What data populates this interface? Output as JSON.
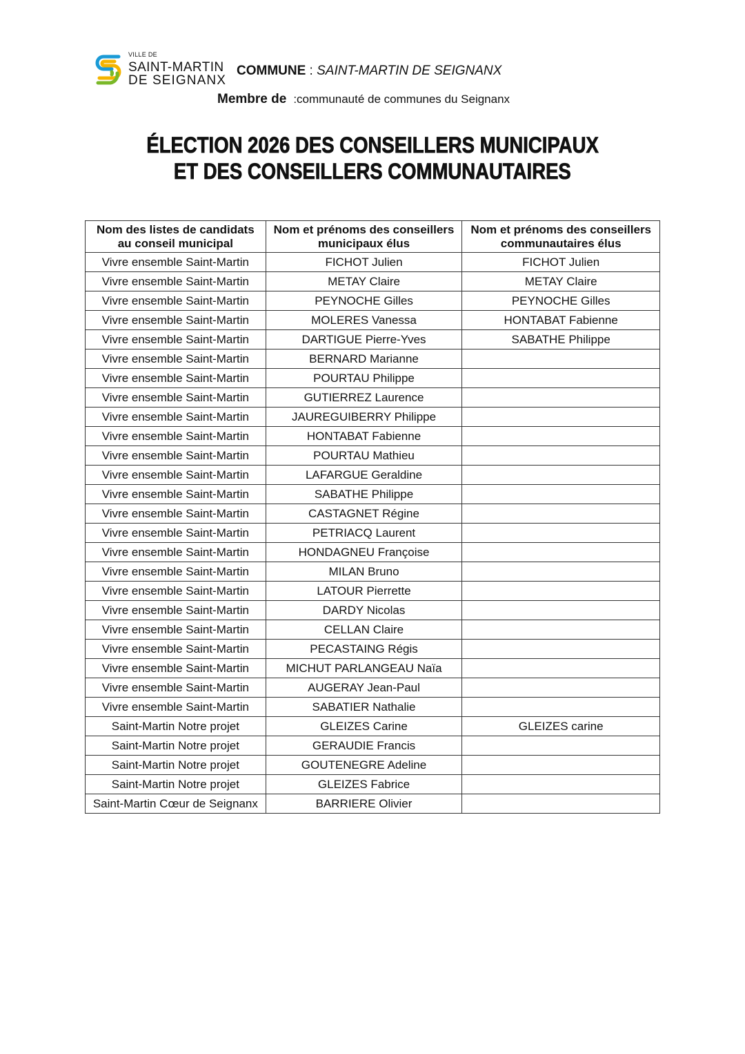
{
  "logo": {
    "small": "VILLE DE",
    "line1": "SAINT-MARTIN",
    "line2": "DE SEIGNANX",
    "colors": [
      "#1a9ad6",
      "#f5b400",
      "#7ab828"
    ]
  },
  "header": {
    "commune_label": "COMMUNE",
    "commune_sep": " : ",
    "commune_value": "SAINT-MARTIN DE SEIGNANX",
    "membre_label": "Membre de",
    "membre_value": ":communauté de communes du Seignanx"
  },
  "title": {
    "line1": "ÉLECTION 2026 DES CONSEILLERS MUNICIPAUX",
    "line2": "ET DES CONSEILLERS COMMUNAUTAIRES"
  },
  "table": {
    "headers": [
      [
        "Nom des listes de candidats",
        "au conseil municipal"
      ],
      [
        "Nom et prénoms des conseillers",
        "municipaux élus"
      ],
      [
        "Nom et prénoms des conseillers",
        "communautaires élus"
      ]
    ],
    "rows": [
      [
        "Vivre ensemble Saint-Martin",
        "FICHOT Julien",
        "FICHOT Julien"
      ],
      [
        "Vivre ensemble Saint-Martin",
        "METAY Claire",
        "METAY Claire"
      ],
      [
        "Vivre ensemble Saint-Martin",
        "PEYNOCHE Gilles",
        "PEYNOCHE Gilles"
      ],
      [
        "Vivre ensemble Saint-Martin",
        "MOLERES Vanessa",
        "HONTABAT Fabienne"
      ],
      [
        "Vivre ensemble Saint-Martin",
        "DARTIGUE Pierre-Yves",
        "SABATHE Philippe"
      ],
      [
        "Vivre ensemble Saint-Martin",
        "BERNARD Marianne",
        ""
      ],
      [
        "Vivre ensemble Saint-Martin",
        "POURTAU Philippe",
        ""
      ],
      [
        "Vivre ensemble Saint-Martin",
        "GUTIERREZ Laurence",
        ""
      ],
      [
        "Vivre ensemble Saint-Martin",
        "JAUREGUIBERRY Philippe",
        ""
      ],
      [
        "Vivre ensemble Saint-Martin",
        "HONTABAT Fabienne",
        ""
      ],
      [
        "Vivre ensemble Saint-Martin",
        "POURTAU Mathieu",
        ""
      ],
      [
        "Vivre ensemble Saint-Martin",
        "LAFARGUE Geraldine",
        ""
      ],
      [
        "Vivre ensemble Saint-Martin",
        "SABATHE Philippe",
        ""
      ],
      [
        "Vivre ensemble Saint-Martin",
        "CASTAGNET Régine",
        ""
      ],
      [
        "Vivre ensemble Saint-Martin",
        "PETRIACQ Laurent",
        ""
      ],
      [
        "Vivre ensemble Saint-Martin",
        "HONDAGNEU Françoise",
        ""
      ],
      [
        "Vivre ensemble Saint-Martin",
        "MILAN Bruno",
        ""
      ],
      [
        "Vivre ensemble Saint-Martin",
        "LATOUR Pierrette",
        ""
      ],
      [
        "Vivre ensemble Saint-Martin",
        "DARDY Nicolas",
        ""
      ],
      [
        "Vivre ensemble Saint-Martin",
        "CELLAN Claire",
        ""
      ],
      [
        "Vivre ensemble Saint-Martin",
        "PECASTAING Régis",
        ""
      ],
      [
        "Vivre ensemble Saint-Martin",
        "MICHUT PARLANGEAU Naïa",
        ""
      ],
      [
        "Vivre ensemble Saint-Martin",
        "AUGERAY Jean-Paul",
        ""
      ],
      [
        "Vivre ensemble Saint-Martin",
        "SABATIER Nathalie",
        ""
      ],
      [
        "Saint-Martin Notre projet",
        "GLEIZES Carine",
        "GLEIZES carine"
      ],
      [
        "Saint-Martin Notre projet",
        "GERAUDIE Francis",
        ""
      ],
      [
        "Saint-Martin Notre projet",
        "GOUTENEGRE Adeline",
        ""
      ],
      [
        "Saint-Martin Notre projet",
        "GLEIZES Fabrice",
        ""
      ],
      [
        "Saint-Martin Cœur de Seignanx",
        "BARRIERE Olivier",
        ""
      ]
    ]
  }
}
